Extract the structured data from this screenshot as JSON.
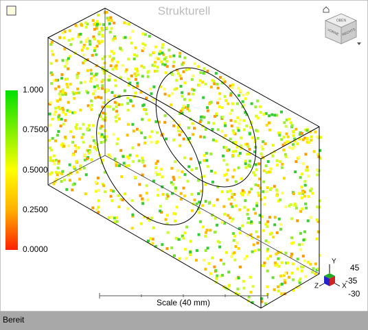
{
  "viewport": {
    "title": "Strukturell",
    "legend": {
      "labels": [
        "1.000",
        "0.7500",
        "0.5000",
        "0.2500",
        "0.0000"
      ]
    },
    "viewcube": {
      "faces": [
        "OBEN",
        "VORNE",
        "RECHTS"
      ]
    },
    "scale_bar": "Scale (40 mm)",
    "triad": {
      "axes": [
        "Y",
        "Z",
        "X"
      ],
      "angles": [
        "45",
        "-35",
        "-30"
      ]
    }
  },
  "status_bar": {
    "text": "Bereit"
  }
}
